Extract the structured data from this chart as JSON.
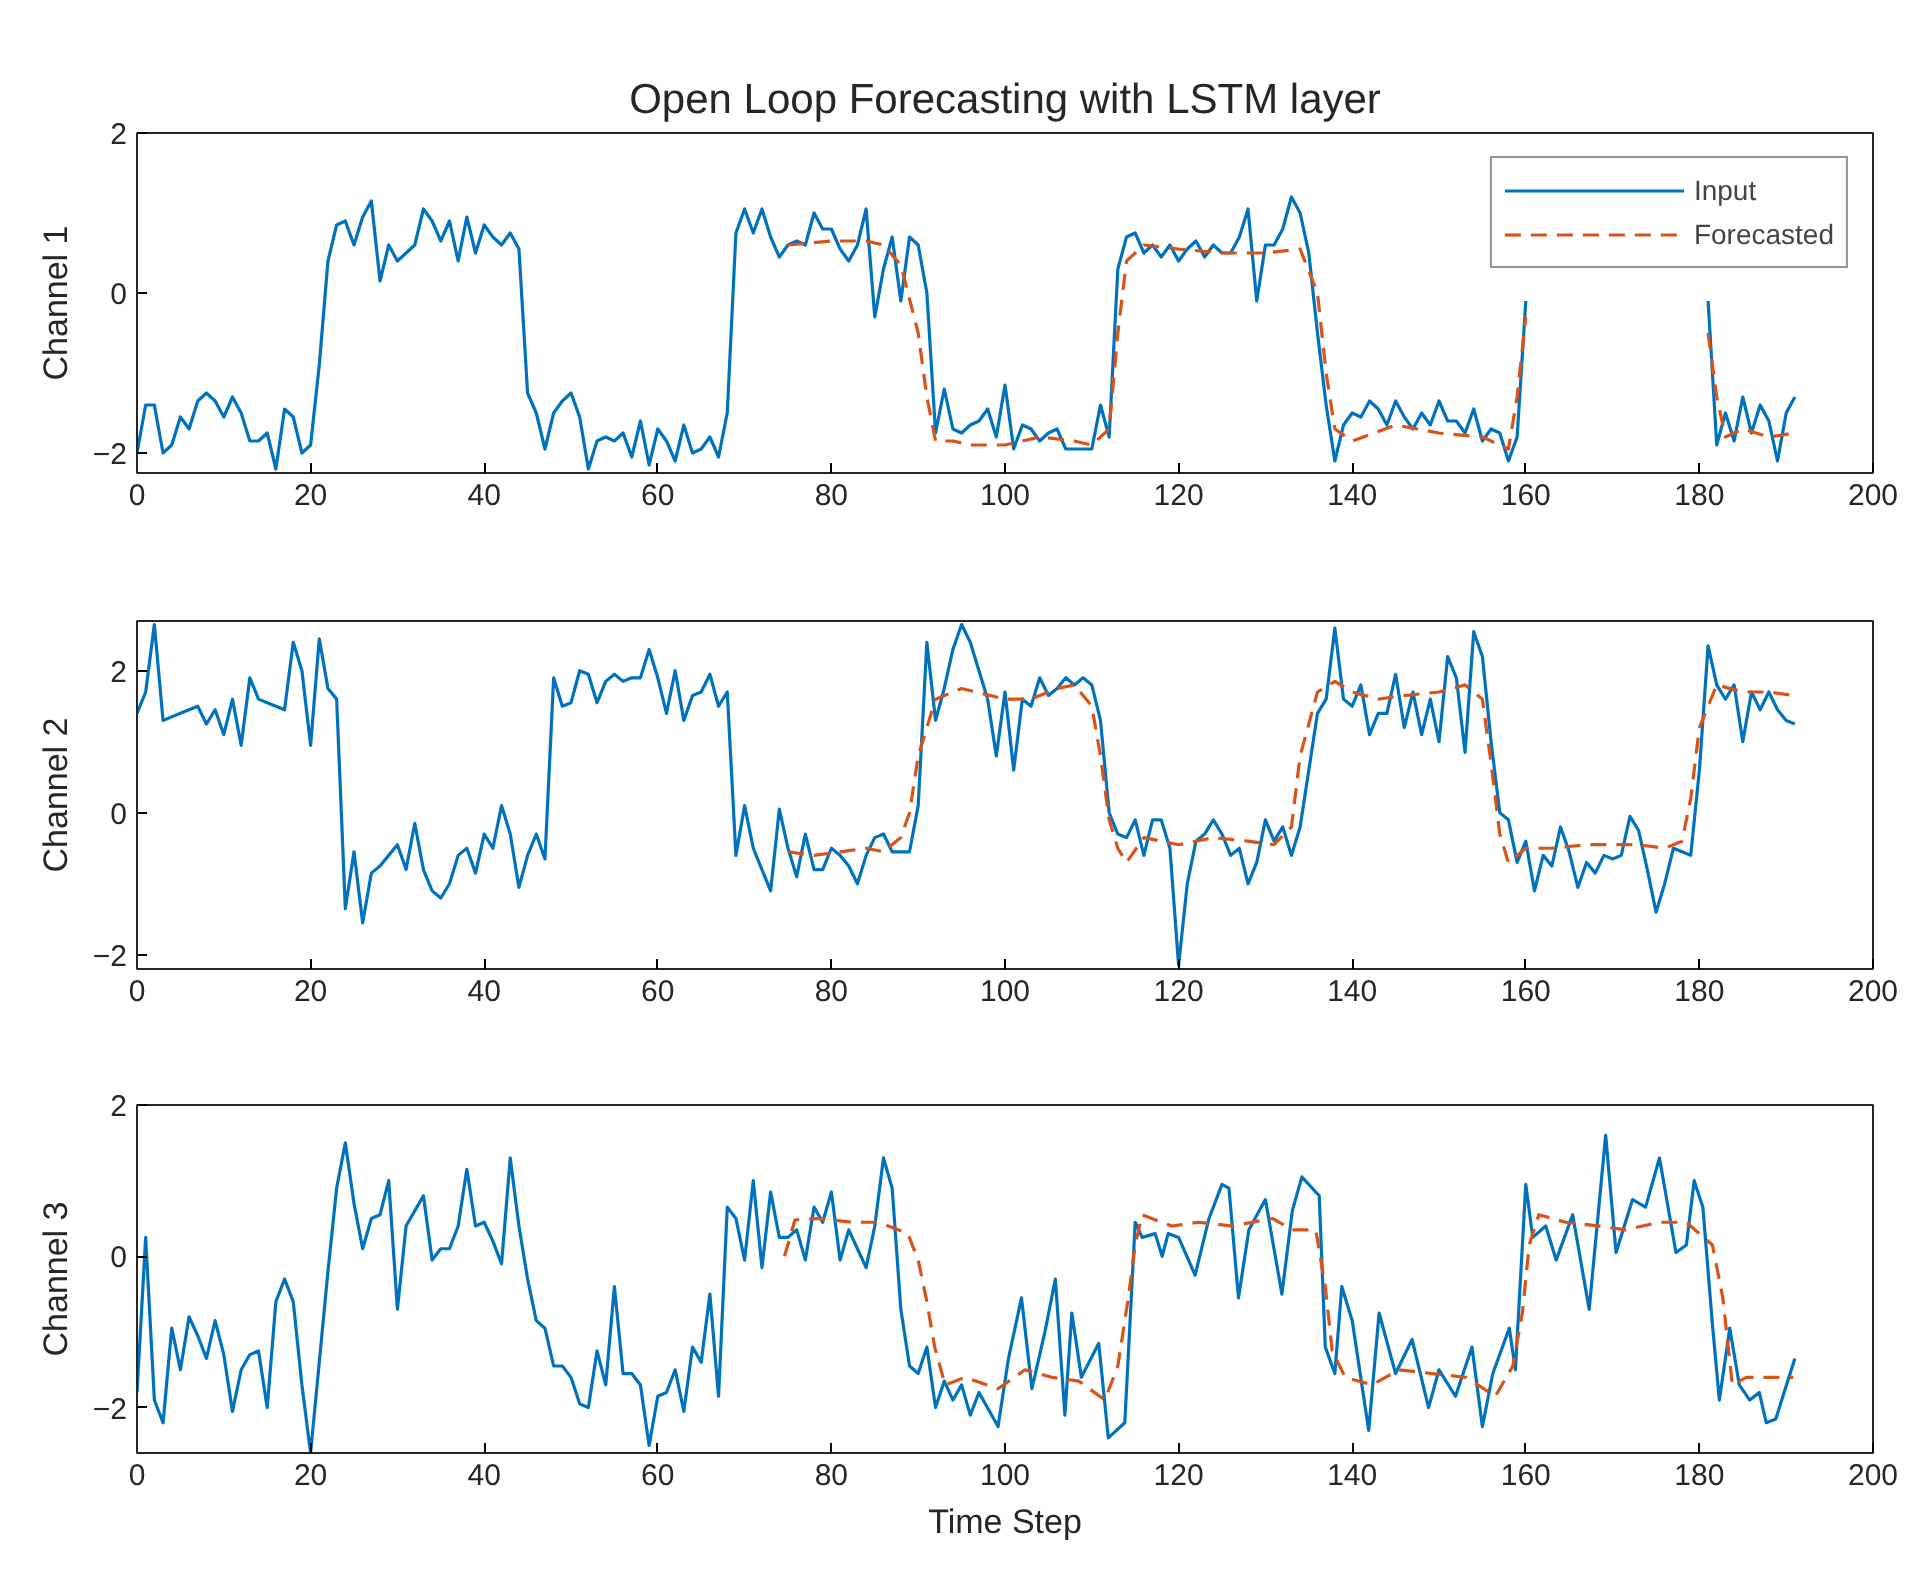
{
  "chart_data": [
    {
      "type": "line",
      "title": "Open Loop Forecasting with LSTM layer",
      "ylabel": "Channel 1",
      "xlim": [
        0,
        200
      ],
      "xticks": [
        0,
        20,
        40,
        60,
        80,
        100,
        120,
        140,
        160,
        180,
        200
      ],
      "ylim": [
        -2.25,
        2
      ],
      "yticks": [
        -2,
        0,
        2
      ],
      "grid": false,
      "legend": "top right",
      "series": [
        {
          "name": "Input",
          "color": "#0072bd",
          "line_style": "solid",
          "x": [
            0,
            1,
            2,
            3,
            4,
            5,
            6,
            7,
            8,
            9,
            10,
            11,
            12,
            13,
            14,
            15,
            16,
            17,
            18,
            19,
            20,
            21,
            22,
            23,
            24,
            25,
            26,
            27,
            28,
            29,
            30,
            31,
            32,
            33,
            34,
            35,
            36,
            37,
            38,
            39,
            40,
            41,
            42,
            43,
            44,
            45,
            46,
            47,
            48,
            49,
            50,
            51,
            52,
            53,
            54,
            55,
            56,
            57,
            58,
            59,
            60,
            61,
            62,
            63,
            64,
            65,
            66,
            67,
            68,
            69,
            70,
            71,
            72,
            73,
            74,
            75,
            76,
            77,
            78,
            79,
            80,
            81,
            82,
            83,
            84,
            85,
            86,
            87,
            88,
            89,
            90,
            91,
            92,
            93,
            94,
            95,
            96,
            97,
            98,
            99,
            100,
            101,
            102,
            103,
            104,
            105,
            106,
            107,
            108,
            109,
            110,
            111,
            112,
            113,
            114,
            115,
            116,
            117,
            118,
            119,
            120,
            121,
            122,
            123,
            124,
            125,
            126,
            127,
            128,
            129,
            130,
            131,
            132,
            133,
            134,
            135,
            136,
            137,
            138,
            139,
            140,
            141,
            142,
            143,
            144,
            145,
            146,
            147,
            148,
            149,
            150,
            151,
            152,
            153,
            154,
            155,
            156,
            157,
            158,
            159,
            160,
            161,
            162,
            163,
            164,
            165,
            166,
            167,
            168,
            169,
            170,
            171,
            172,
            173,
            174,
            175,
            176,
            177,
            178,
            179,
            180,
            181,
            182,
            183,
            184,
            185,
            186,
            187,
            188,
            189,
            190,
            191
          ],
          "values": [
            -2.0,
            -1.4,
            -1.4,
            -2.0,
            -1.9,
            -1.55,
            -1.7,
            -1.35,
            -1.25,
            -1.35,
            -1.55,
            -1.3,
            -1.5,
            -1.85,
            -1.85,
            -1.75,
            -2.2,
            -1.45,
            -1.55,
            -2.0,
            -1.9,
            -0.9,
            0.4,
            0.85,
            0.9,
            0.6,
            0.95,
            1.15,
            0.15,
            0.6,
            0.4,
            0.5,
            0.6,
            1.05,
            0.9,
            0.65,
            0.9,
            0.4,
            0.95,
            0.5,
            0.85,
            0.7,
            0.6,
            0.75,
            0.55,
            -1.25,
            -1.5,
            -1.95,
            -1.5,
            -1.35,
            -1.25,
            -1.55,
            -2.2,
            -1.85,
            -1.8,
            -1.85,
            -1.75,
            -2.05,
            -1.6,
            -2.15,
            -1.7,
            -1.85,
            -2.1,
            -1.65,
            -2.0,
            -1.95,
            -1.8,
            -2.05,
            -1.5,
            0.75,
            1.05,
            0.75,
            1.05,
            0.7,
            0.45,
            0.6,
            0.65,
            0.6,
            1.0,
            0.8,
            0.8,
            0.55,
            0.4,
            0.6,
            1.05,
            -0.3,
            0.3,
            0.7,
            -0.1,
            0.7,
            0.6,
            0.0,
            -1.75,
            -1.2,
            -1.7,
            -1.75,
            -1.65,
            -1.6,
            -1.45,
            -1.8,
            -1.15,
            -1.95,
            -1.65,
            -1.7,
            -1.85,
            -1.75,
            -1.7,
            -1.95,
            -1.95,
            -1.95,
            -1.95,
            -1.4,
            -1.8,
            0.3,
            0.7,
            0.75,
            0.5,
            0.6,
            0.45,
            0.6,
            0.4,
            0.55,
            0.65,
            0.45,
            0.6,
            0.5,
            0.5,
            0.7,
            1.05,
            -0.1,
            0.6,
            0.6,
            0.8,
            1.2,
            1.0,
            0.5,
            -0.5,
            -1.4,
            -2.1,
            -1.65,
            -1.5,
            -1.55,
            -1.35,
            -1.45,
            -1.65,
            -1.35,
            -1.55,
            -1.7,
            -1.5,
            -1.65,
            -1.35,
            -1.6,
            -1.6,
            -1.75,
            -1.45,
            -1.85,
            -1.7,
            -1.75,
            -2.1,
            -1.8,
            -0.1,
            null,
            null,
            null,
            null,
            null,
            null,
            null,
            null,
            null,
            null,
            null,
            null,
            null,
            null,
            null,
            null,
            null,
            null,
            null,
            null,
            -0.1,
            -1.9,
            -1.5,
            -1.85,
            -1.3,
            -1.75,
            -1.4,
            -1.6,
            -2.1,
            -1.5,
            -1.3
          ]
        },
        {
          "name": "Forecasted",
          "color": "#d95319",
          "line_style": "dashed",
          "x": [
            75,
            80,
            84,
            86,
            88,
            90,
            91,
            92,
            94,
            96,
            100,
            104,
            108,
            110,
            112,
            113,
            114,
            116,
            120,
            125,
            130,
            134,
            136,
            137,
            138,
            140,
            145,
            150,
            155,
            158,
            159,
            160,
            161,
            180,
            181,
            182,
            183,
            185,
            188,
            191
          ],
          "values": [
            0.6,
            0.65,
            0.65,
            0.6,
            0.35,
            -0.5,
            -1.3,
            -1.85,
            -1.85,
            -1.9,
            -1.9,
            -1.8,
            -1.85,
            -1.9,
            -1.7,
            -0.5,
            0.4,
            0.6,
            0.55,
            0.5,
            0.5,
            0.55,
            0.0,
            -1.0,
            -1.7,
            -1.85,
            -1.65,
            -1.75,
            -1.8,
            -1.95,
            -1.3,
            -0.3,
            null,
            null,
            -0.5,
            -1.3,
            -1.8,
            -1.7,
            -1.8,
            -1.75
          ]
        }
      ]
    },
    {
      "type": "line",
      "ylabel": "Channel 2",
      "xlim": [
        0,
        200
      ],
      "xticks": [
        0,
        20,
        40,
        60,
        80,
        100,
        120,
        140,
        160,
        180,
        200
      ],
      "ylim": [
        -2.2,
        2.7
      ],
      "yticks": [
        -2,
        0,
        2
      ],
      "grid": false,
      "series": [
        {
          "color": "#0072bd",
          "line_style": "solid",
          "x": [
            0,
            1,
            2,
            3,
            4,
            5,
            6,
            7,
            8,
            9,
            10,
            11,
            12,
            13,
            14,
            15,
            16,
            17,
            18,
            19,
            20,
            21,
            22,
            23,
            24,
            25,
            26,
            27,
            28,
            29,
            30,
            31,
            32,
            33,
            34,
            35,
            36,
            37,
            38,
            39,
            40,
            41,
            42,
            43,
            44,
            45,
            46,
            47,
            48,
            49,
            50,
            51,
            52,
            53,
            54,
            55,
            56,
            57,
            58,
            59,
            60,
            61,
            62,
            63,
            64,
            65,
            66,
            67,
            68,
            69,
            70,
            71,
            72,
            73,
            74,
            75,
            76,
            77,
            78,
            79,
            80,
            81,
            82,
            83,
            84,
            85,
            86,
            87,
            88,
            89,
            90,
            91,
            92,
            93,
            94,
            95,
            96,
            97,
            98,
            99,
            100,
            101,
            102,
            103,
            104,
            105,
            106,
            107,
            108,
            109,
            110,
            111,
            112,
            113,
            114,
            115,
            116,
            117,
            118,
            119,
            120,
            121,
            122,
            123,
            124,
            125,
            126,
            127,
            128,
            129,
            130,
            131,
            132,
            133,
            134,
            135,
            136,
            137,
            138,
            139,
            140,
            141,
            142,
            143,
            144,
            145,
            146,
            147,
            148,
            149,
            150,
            151,
            152,
            153,
            154,
            155,
            156,
            157,
            158,
            159,
            160,
            161,
            162,
            163,
            164,
            165,
            166,
            167,
            168,
            169,
            170,
            171,
            172,
            173,
            174,
            175,
            176,
            177,
            178,
            179,
            180,
            181,
            182,
            183,
            184,
            185,
            186,
            187,
            188,
            189,
            190,
            191
          ],
          "values": [
            1.4,
            1.7,
            2.65,
            1.3,
            1.35,
            1.4,
            1.45,
            1.5,
            1.25,
            1.45,
            1.1,
            1.6,
            0.95,
            1.9,
            1.6,
            1.55,
            1.5,
            1.45,
            2.4,
            2.0,
            0.95,
            2.45,
            1.75,
            1.6,
            -1.35,
            -0.55,
            -1.55,
            -0.85,
            -0.75,
            -0.6,
            -0.45,
            -0.8,
            -0.15,
            -0.8,
            -1.1,
            -1.2,
            -1.0,
            -0.6,
            -0.5,
            -0.85,
            -0.3,
            -0.5,
            0.1,
            -0.3,
            -1.05,
            -0.6,
            -0.3,
            -0.65,
            1.9,
            1.5,
            1.55,
            2.0,
            1.95,
            1.55,
            1.85,
            1.95,
            1.85,
            1.9,
            1.9,
            2.3,
            1.9,
            1.4,
            2.0,
            1.3,
            1.65,
            1.7,
            1.95,
            1.5,
            1.7,
            -0.6,
            0.1,
            -0.5,
            -0.8,
            -1.1,
            0.05,
            -0.5,
            -0.9,
            -0.3,
            -0.8,
            -0.8,
            -0.5,
            -0.6,
            -0.75,
            -1.0,
            -0.6,
            -0.35,
            -0.3,
            -0.55,
            -0.55,
            -0.55,
            0.1,
            2.4,
            1.3,
            1.75,
            2.3,
            2.65,
            2.4,
            2.0,
            1.6,
            0.8,
            1.7,
            0.6,
            1.6,
            1.5,
            1.9,
            1.65,
            1.75,
            1.9,
            1.8,
            1.9,
            1.8,
            1.3,
            0.0,
            -0.3,
            -0.35,
            -0.1,
            -0.6,
            -0.1,
            -0.1,
            -0.5,
            -2.15,
            -1.0,
            -0.4,
            -0.3,
            -0.1,
            -0.3,
            -0.6,
            -0.5,
            -1.0,
            -0.7,
            -0.1,
            -0.4,
            -0.2,
            -0.6,
            -0.2,
            0.6,
            1.4,
            1.6,
            2.6,
            1.6,
            1.5,
            1.8,
            1.1,
            1.4,
            1.4,
            1.95,
            1.2,
            1.7,
            1.1,
            1.6,
            1.0,
            2.2,
            1.9,
            0.85,
            2.55,
            2.2,
            1.0,
            0.0,
            -0.1,
            -0.7,
            -0.4,
            -1.1,
            -0.6,
            -0.75,
            -0.2,
            -0.55,
            -1.05,
            -0.7,
            -0.85,
            -0.6,
            -0.65,
            -0.6,
            -0.05,
            -0.25,
            -0.8,
            -1.4,
            -1.0,
            -0.5,
            -0.55,
            -0.6,
            0.6,
            2.35,
            1.8,
            1.6,
            1.8,
            1.0,
            1.7,
            1.45,
            1.7,
            1.45,
            1.3,
            1.25
          ]
        },
        {
          "color": "#d95319",
          "line_style": "dashed",
          "x": [
            75,
            78,
            81,
            84,
            86,
            88,
            89,
            90,
            92,
            95,
            100,
            103,
            106,
            108,
            110,
            111,
            112,
            113,
            114,
            116,
            120,
            124,
            128,
            131,
            133,
            134,
            136,
            138,
            140,
            143,
            146,
            150,
            153,
            155,
            156,
            157,
            158,
            160,
            163,
            167,
            170,
            173,
            176,
            178,
            179,
            180,
            182,
            185,
            188,
            191
          ],
          "values": [
            -0.55,
            -0.6,
            -0.55,
            -0.5,
            -0.55,
            -0.35,
            0.0,
            0.8,
            1.6,
            1.75,
            1.6,
            1.6,
            1.75,
            1.8,
            1.5,
            0.8,
            -0.1,
            -0.5,
            -0.7,
            -0.35,
            -0.45,
            -0.35,
            -0.4,
            -0.45,
            -0.2,
            0.8,
            1.7,
            1.85,
            1.7,
            1.6,
            1.65,
            1.7,
            1.8,
            1.6,
            0.7,
            -0.3,
            -0.7,
            -0.5,
            -0.5,
            -0.45,
            -0.45,
            -0.45,
            -0.5,
            -0.4,
            0.2,
            1.2,
            1.8,
            1.7,
            1.7,
            1.65
          ]
        }
      ]
    },
    {
      "type": "line",
      "ylabel": "Channel 3",
      "xlabel": "Time Step",
      "xlim": [
        0,
        200
      ],
      "xticks": [
        0,
        20,
        40,
        60,
        80,
        100,
        120,
        140,
        160,
        180,
        200
      ],
      "ylim": [
        -2.6,
        2
      ],
      "yticks": [
        -2,
        0,
        2
      ],
      "grid": false,
      "series": [
        {
          "color": "#0072bd",
          "line_style": "solid",
          "x": [
            0,
            1,
            2,
            3,
            4,
            5,
            6,
            7,
            8,
            9,
            10,
            11,
            12,
            13,
            14,
            15,
            16,
            17,
            18,
            19,
            20,
            21,
            22,
            23,
            24,
            25,
            26,
            27,
            28,
            29,
            30,
            31,
            32,
            33,
            34,
            35,
            36,
            37,
            38,
            39,
            40,
            41,
            42,
            43,
            44,
            45,
            46,
            47,
            48,
            49,
            50,
            51,
            52,
            53,
            54,
            55,
            56,
            57,
            58,
            59,
            60,
            61,
            62,
            63,
            64,
            65,
            66,
            67,
            68,
            69,
            70,
            71,
            72,
            73,
            74,
            75,
            76,
            77,
            78,
            79,
            80,
            81,
            82,
            83,
            84,
            85,
            86,
            87,
            88,
            89,
            90,
            91,
            92,
            93,
            94,
            95,
            96,
            97,
            99.2,
            100.4,
            101.9,
            103.1,
            104.6,
            105.8,
            106.9,
            107.7,
            108.8,
            110.8,
            111.9,
            113.8,
            115,
            115.8,
            117.3,
            118.1,
            118.8,
            120,
            121.9,
            123.5,
            125,
            125.8,
            126.9,
            128.1,
            130,
            131.9,
            133.1,
            134.2,
            136.2,
            136.9,
            138,
            138.8,
            140,
            141.9,
            143.1,
            145,
            146.9,
            148.8,
            150,
            151.9,
            153.8,
            155,
            156.2,
            158.1,
            158.8,
            160,
            160.8,
            162.3,
            163.5,
            165.4,
            167.3,
            169.2,
            170.4,
            172.3,
            173.8,
            175.4,
            177.3,
            178.5,
            179.4,
            180.4,
            181.5,
            182.3,
            183.5,
            184.6,
            185.8,
            186.9,
            187.7,
            188.8,
            191
          ],
          "values": [
            -1.8,
            0.25,
            -1.9,
            -2.2,
            -0.95,
            -1.5,
            -0.8,
            -1.05,
            -1.35,
            -0.85,
            -1.3,
            -2.05,
            -1.5,
            -1.3,
            -1.25,
            -2.0,
            -0.6,
            -0.3,
            -0.6,
            -1.7,
            -2.6,
            -1.4,
            -0.2,
            0.9,
            1.5,
            0.7,
            0.1,
            0.5,
            0.55,
            1.0,
            -0.7,
            0.4,
            0.6,
            0.8,
            -0.05,
            0.1,
            0.1,
            0.4,
            1.15,
            0.4,
            0.45,
            0.2,
            -0.1,
            1.3,
            0.4,
            -0.3,
            -0.85,
            -0.95,
            -1.45,
            -1.45,
            -1.6,
            -1.95,
            -2.0,
            -1.25,
            -1.7,
            -0.4,
            -1.55,
            -1.55,
            -1.7,
            -2.5,
            -1.85,
            -1.8,
            -1.5,
            -2.05,
            -1.2,
            -1.4,
            -0.5,
            -1.85,
            0.65,
            0.5,
            -0.05,
            1.0,
            -0.15,
            0.85,
            0.25,
            0.25,
            0.35,
            -0.05,
            0.65,
            0.45,
            0.85,
            -0.05,
            0.35,
            0.1,
            -0.15,
            0.4,
            1.3,
            0.9,
            -0.7,
            -1.45,
            -1.55,
            -1.2,
            -2.0,
            -1.65,
            -1.9,
            -1.7,
            -2.1,
            -1.8,
            -2.25,
            -1.35,
            -0.55,
            -1.75,
            -1.0,
            -0.3,
            -2.1,
            -0.75,
            -1.6,
            -1.15,
            -2.4,
            -2.2,
            0.45,
            0.25,
            0.3,
            0.0,
            0.3,
            0.25,
            -0.25,
            0.5,
            0.95,
            0.9,
            -0.55,
            0.35,
            0.75,
            -0.5,
            0.6,
            1.05,
            0.8,
            -1.2,
            -1.55,
            -0.4,
            -0.85,
            -2.3,
            -0.75,
            -1.55,
            -1.1,
            -2.0,
            -1.5,
            -1.85,
            -1.2,
            -2.25,
            -1.55,
            -0.95,
            -1.5,
            0.95,
            0.25,
            0.4,
            -0.05,
            0.55,
            -0.7,
            1.6,
            0.05,
            0.75,
            0.65,
            1.3,
            0.05,
            0.15,
            1.0,
            0.65,
            -0.9,
            -1.9,
            -0.95,
            -1.7,
            -1.9,
            -1.8,
            -2.2,
            -2.15,
            -1.35
          ]
        },
        {
          "color": "#d95319",
          "line_style": "dashed",
          "x": [
            74.6,
            75.8,
            78.5,
            82.3,
            85.4,
            88.8,
            90,
            91,
            91.9,
            93.1,
            95.4,
            99.2,
            102.3,
            105.4,
            108.5,
            111.5,
            113,
            114.2,
            115,
            115.8,
            119.2,
            122.3,
            126.2,
            130.8,
            133.1,
            135.8,
            136.9,
            137.7,
            139.2,
            142.3,
            145.4,
            149.2,
            153.1,
            156.5,
            158.5,
            159.6,
            160.4,
            161.5,
            164.6,
            168.5,
            171.5,
            175.4,
            178.5,
            181.5,
            182.7,
            183.8,
            185.4,
            188.5,
            190.8
          ],
          "values": [
            0.0,
            0.48,
            0.5,
            0.45,
            0.45,
            0.3,
            -0.05,
            -0.6,
            -1.2,
            -1.7,
            -1.6,
            -1.75,
            -1.5,
            -1.6,
            -1.65,
            -1.9,
            -1.45,
            -0.55,
            0.15,
            0.55,
            0.4,
            0.45,
            0.4,
            0.5,
            0.35,
            0.35,
            -0.4,
            -1.25,
            -1.6,
            -1.7,
            -1.5,
            -1.55,
            -1.6,
            -1.85,
            -1.45,
            -0.75,
            0.15,
            0.55,
            0.45,
            0.4,
            0.35,
            0.45,
            0.45,
            0.15,
            -0.55,
            -1.7,
            -1.6,
            -1.6,
            -1.6
          ]
        }
      ]
    }
  ]
}
